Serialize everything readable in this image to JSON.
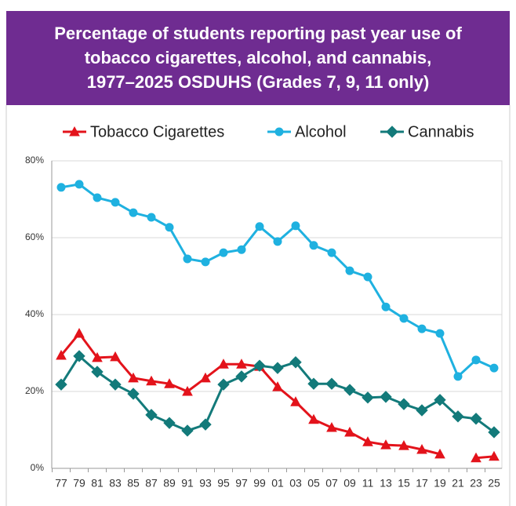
{
  "chart_data": {
    "type": "line",
    "title": [
      "Percentage of students reporting past year use of",
      "tobacco cigarettes, alcohol, and cannabis,",
      "1977–2025 OSDUHS (Grades 7, 9, 11 only)"
    ],
    "categories": [
      "77",
      "79",
      "81",
      "83",
      "85",
      "87",
      "89",
      "91",
      "93",
      "95",
      "97",
      "99",
      "01",
      "03",
      "05",
      "07",
      "09",
      "11",
      "13",
      "15",
      "17",
      "19",
      "21",
      "23",
      "25"
    ],
    "series": [
      {
        "name": "Tobacco Cigarettes",
        "color": "#e3131b",
        "marker": "triangle",
        "values": [
          29.4,
          35.1,
          28.8,
          29.0,
          23.5,
          22.7,
          22.0,
          20.0,
          23.5,
          27.1,
          27.1,
          26.5,
          21.2,
          17.3,
          12.7,
          10.6,
          9.4,
          6.9,
          6.1,
          5.9,
          4.9,
          3.7,
          null,
          2.7,
          3.1
        ]
      },
      {
        "name": "Alcohol",
        "color": "#1fb1e0",
        "marker": "circle",
        "values": [
          73.1,
          73.9,
          70.4,
          69.2,
          66.5,
          65.3,
          62.7,
          54.5,
          53.7,
          56.1,
          56.9,
          62.9,
          59.0,
          63.1,
          58.0,
          56.1,
          51.4,
          49.8,
          42.0,
          39.0,
          36.3,
          35.1,
          23.9,
          28.2,
          26.1
        ]
      },
      {
        "name": "Cannabis",
        "color": "#137a7a",
        "marker": "diamond",
        "values": [
          21.8,
          29.2,
          25.1,
          21.8,
          19.4,
          13.9,
          11.8,
          9.8,
          11.4,
          21.8,
          23.9,
          26.7,
          26.1,
          27.6,
          22.0,
          22.0,
          20.4,
          18.4,
          18.6,
          16.7,
          15.1,
          17.8,
          13.5,
          12.9,
          9.4
        ]
      }
    ],
    "ylim": [
      0,
      80
    ],
    "yticks": [
      {
        "value": 0,
        "label": "0%"
      },
      {
        "value": 20,
        "label": "20%"
      },
      {
        "value": 40,
        "label": "40%"
      },
      {
        "value": 60,
        "label": "60%"
      },
      {
        "value": 80,
        "label": "80%"
      }
    ],
    "grid": true,
    "legend": "top"
  }
}
